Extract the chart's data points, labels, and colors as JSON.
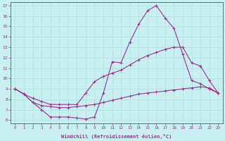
{
  "xlabel": "Windchill (Refroidissement éolien,°C)",
  "background_color": "#c8f0f0",
  "grid_color": "#b0dede",
  "line_color": "#993399",
  "xlim": [
    -0.5,
    23.5
  ],
  "ylim": [
    5.7,
    17.3
  ],
  "xticks": [
    0,
    1,
    2,
    3,
    4,
    5,
    6,
    7,
    8,
    9,
    10,
    11,
    12,
    13,
    14,
    15,
    16,
    17,
    18,
    19,
    20,
    21,
    22,
    23
  ],
  "yticks": [
    6,
    7,
    8,
    9,
    10,
    11,
    12,
    13,
    14,
    15,
    16,
    17
  ],
  "line1_x": [
    0,
    1,
    2,
    3,
    4,
    5,
    6,
    7,
    8,
    9,
    10,
    11,
    12,
    13,
    14,
    15,
    16,
    17,
    18,
    19,
    20,
    21,
    22,
    23
  ],
  "line1_y": [
    9.0,
    8.5,
    7.7,
    7.0,
    6.3,
    6.3,
    6.3,
    6.2,
    6.1,
    6.3,
    8.6,
    11.6,
    11.5,
    13.5,
    15.2,
    16.5,
    17.0,
    15.8,
    14.8,
    12.3,
    9.8,
    9.5,
    9.0,
    8.6
  ],
  "line2_x": [
    0,
    1,
    2,
    3,
    4,
    5,
    6,
    7,
    8,
    9,
    10,
    11,
    12,
    13,
    14,
    15,
    16,
    17,
    18,
    19,
    20,
    21,
    22,
    23
  ],
  "line2_y": [
    9.0,
    8.5,
    8.1,
    7.8,
    7.5,
    7.5,
    7.5,
    7.5,
    8.6,
    9.7,
    10.2,
    10.5,
    10.8,
    11.3,
    11.8,
    12.2,
    12.5,
    12.8,
    13.0,
    13.0,
    11.5,
    11.2,
    9.8,
    8.6
  ],
  "line3_x": [
    0,
    1,
    2,
    3,
    4,
    5,
    6,
    7,
    8,
    9,
    10,
    11,
    12,
    13,
    14,
    15,
    16,
    17,
    18,
    19,
    20,
    21,
    22,
    23
  ],
  "line3_y": [
    9.0,
    8.5,
    7.7,
    7.4,
    7.3,
    7.2,
    7.2,
    7.3,
    7.4,
    7.5,
    7.7,
    7.9,
    8.1,
    8.3,
    8.5,
    8.6,
    8.7,
    8.8,
    8.9,
    9.0,
    9.1,
    9.2,
    9.1,
    8.6
  ],
  "marker": "+",
  "markersize": 3.5,
  "linewidth": 0.8
}
